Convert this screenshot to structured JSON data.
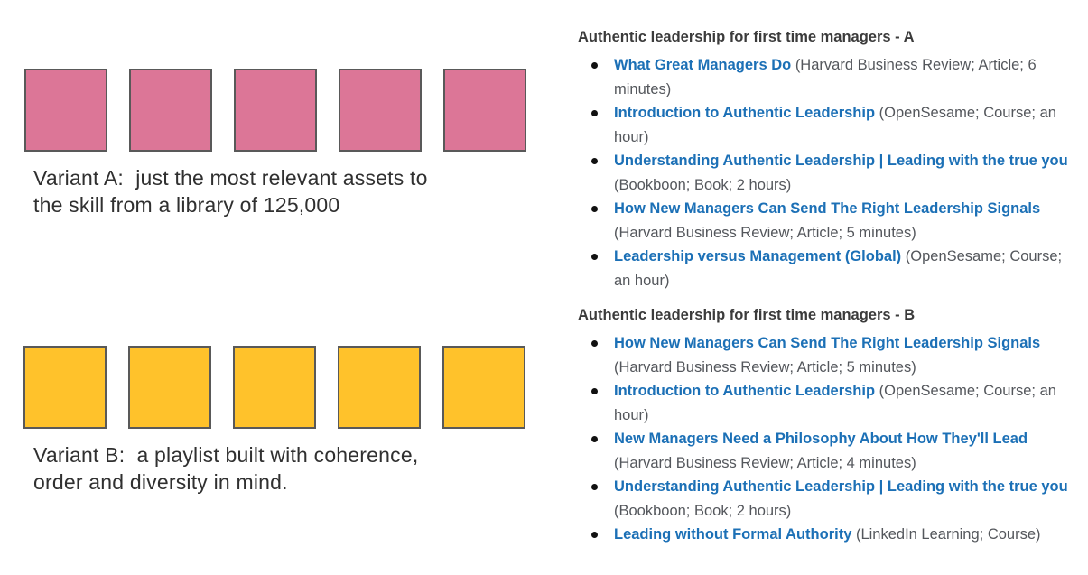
{
  "colors": {
    "square_pink": "#DC7697",
    "square_yellow": "#FFC22B",
    "square_border": "#595959",
    "link_blue": "#1C70B6",
    "meta_gray": "#54575C",
    "heading_gray": "#3B3B3B",
    "caption_dark": "#303030"
  },
  "variant_a": {
    "square_count": 5,
    "square_color": "#DC7697",
    "caption_line1": "Variant A:  just the most relevant assets to",
    "caption_line2": "the skill from a library of 125,000"
  },
  "variant_b": {
    "square_count": 5,
    "square_color": "#FFC22B",
    "caption_line1": "Variant B:  a playlist built with coherence,",
    "caption_line2": "order and diversity in mind."
  },
  "playlists": [
    {
      "title": "Authentic leadership for first time managers - A",
      "items": [
        {
          "link": "What Great Managers Do",
          "meta": "(Harvard Business Review; Article; 6 minutes)"
        },
        {
          "link": "Introduction to Authentic Leadership",
          "meta": "(OpenSesame; Course; an hour)"
        },
        {
          "link": "Understanding Authentic Leadership | Leading with the true you",
          "meta": "(Bookboon; Book; 2 hours)"
        },
        {
          "link": "How New Managers Can Send The Right Leadership Signals",
          "meta": "(Harvard Business Review; Article; 5 minutes)"
        },
        {
          "link": "Leadership versus Management (Global)",
          "meta": "(OpenSesame; Course; an hour)"
        }
      ]
    },
    {
      "title": "Authentic leadership for first time managers - B",
      "items": [
        {
          "link": "How New Managers Can Send The Right Leadership Signals",
          "meta": "(Harvard Business Review; Article; 5 minutes)"
        },
        {
          "link": "Introduction to Authentic Leadership",
          "meta": "(OpenSesame; Course; an hour)"
        },
        {
          "link": "New Managers Need a Philosophy About How They'll Lead",
          "meta": "(Harvard Business Review; Article; 4 minutes)"
        },
        {
          "link": "Understanding Authentic Leadership | Leading with the true you",
          "meta": "(Bookboon; Book; 2 hours)"
        },
        {
          "link": "Leading without Formal Authority",
          "meta": "(LinkedIn Learning; Course)"
        }
      ]
    }
  ]
}
